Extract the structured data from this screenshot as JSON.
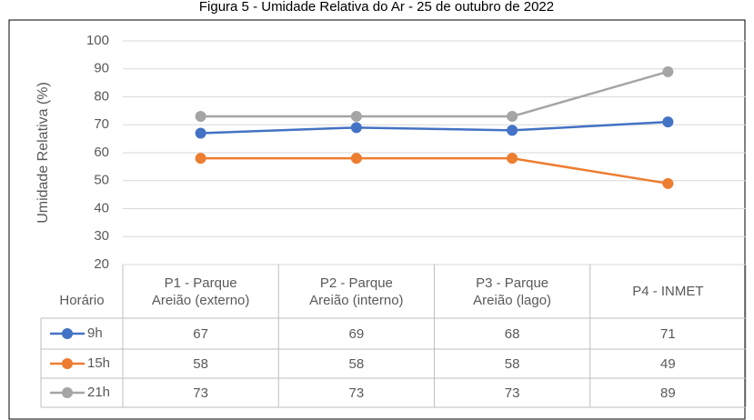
{
  "chart_data": {
    "type": "line",
    "title": "Figura 5 - Umidade Relativa do Ar - 25 de outubro de 2022",
    "y_label": "Umidade Relativa  (%)",
    "table_header": "Horário",
    "categories": [
      "P1 - Parque Areião (externo)",
      "P2 - Parque Areião (interno)",
      "P3 - Parque Areião (lago)",
      "P4 - INMET"
    ],
    "series": [
      {
        "name": "9h",
        "color": "#4472c4",
        "values": [
          67,
          69,
          68,
          71
        ]
      },
      {
        "name": "15h",
        "color": "#ed7d31",
        "values": [
          58,
          58,
          58,
          49
        ]
      },
      {
        "name": "21h",
        "color": "#a5a5a5",
        "values": [
          73,
          73,
          73,
          89
        ]
      }
    ],
    "ylim": [
      20,
      100
    ],
    "yticks": [
      20,
      30,
      40,
      50,
      60,
      70,
      80,
      90,
      100
    ],
    "grid": true
  }
}
